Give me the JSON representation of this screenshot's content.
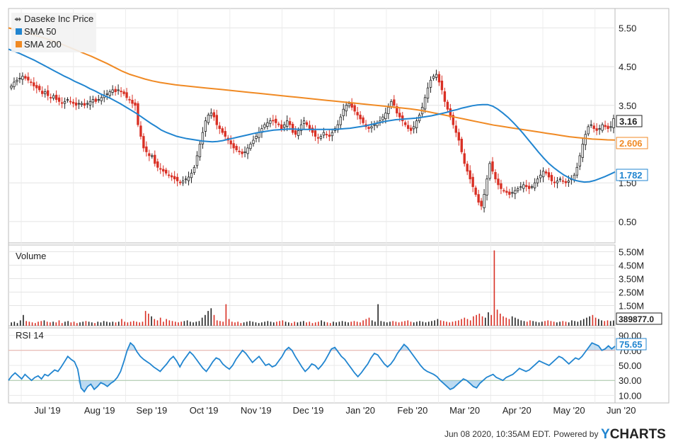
{
  "chart_data": [
    {
      "type": "candlestick",
      "panel": "price",
      "title": "Daseke Inc Price",
      "x_tick_labels": [
        "Jul '19",
        "Aug '19",
        "Sep '19",
        "Oct '19",
        "Nov '19",
        "Dec '19",
        "Jan '20",
        "Feb '20",
        "Mar '20",
        "Apr '20",
        "May '20",
        "Jun '20"
      ],
      "y_tick_labels": [
        "5.50",
        "4.50",
        "3.50",
        "2.50",
        "1.50",
        "0.50"
      ],
      "ylim": [
        -0.05,
        6.0
      ],
      "legend": [
        "Daseke Inc Price",
        "SMA 50",
        "SMA 200"
      ],
      "last_values": {
        "price": "3.16",
        "sma200": "2.606",
        "sma50": "1.782"
      },
      "colors": {
        "up": "#222222",
        "down": "#d93025",
        "sma50": "#2185d0",
        "sma200": "#f08a24"
      },
      "close": [
        4.0,
        4.1,
        4.15,
        4.2,
        4.25,
        4.2,
        4.15,
        4.1,
        4.0,
        3.95,
        3.9,
        3.8,
        3.85,
        3.75,
        3.7,
        3.75,
        3.65,
        3.6,
        3.55,
        3.6,
        3.65,
        3.6,
        3.55,
        3.5,
        3.55,
        3.55,
        3.5,
        3.55,
        3.6,
        3.65,
        3.6,
        3.65,
        3.7,
        3.75,
        3.8,
        3.85,
        3.9,
        3.85,
        3.9,
        3.85,
        3.8,
        3.7,
        3.65,
        3.55,
        3.5,
        3.0,
        2.7,
        2.4,
        2.3,
        2.2,
        2.2,
        2.0,
        1.9,
        1.85,
        1.8,
        1.75,
        1.7,
        1.65,
        1.6,
        1.55,
        1.5,
        1.55,
        1.6,
        1.65,
        1.75,
        1.9,
        2.2,
        2.5,
        2.8,
        3.1,
        3.25,
        3.3,
        3.2,
        3.0,
        2.9,
        2.8,
        2.7,
        2.6,
        2.5,
        2.4,
        2.35,
        2.3,
        2.25,
        2.3,
        2.4,
        2.5,
        2.6,
        2.7,
        2.8,
        2.9,
        3.0,
        3.05,
        3.1,
        3.1,
        3.05,
        3.0,
        2.9,
        3.0,
        3.1,
        3.0,
        2.8,
        2.75,
        2.85,
        3.0,
        3.1,
        3.0,
        2.9,
        2.8,
        2.7,
        2.65,
        2.7,
        2.8,
        2.75,
        2.7,
        2.8,
        2.9,
        3.0,
        3.2,
        3.4,
        3.5,
        3.55,
        3.45,
        3.35,
        3.25,
        3.15,
        3.05,
        2.95,
        2.9,
        2.95,
        3.0,
        3.05,
        3.1,
        3.2,
        3.3,
        3.45,
        3.6,
        3.5,
        3.3,
        3.2,
        3.1,
        3.0,
        2.9,
        2.85,
        2.95,
        3.1,
        3.25,
        3.45,
        3.7,
        3.95,
        4.15,
        4.25,
        4.3,
        4.1,
        3.9,
        3.6,
        3.4,
        3.2,
        3.0,
        2.8,
        2.6,
        2.3,
        2.0,
        1.8,
        1.6,
        1.4,
        1.2,
        1.0,
        0.9,
        1.2,
        1.6,
        2.0,
        1.8,
        1.6,
        1.45,
        1.35,
        1.3,
        1.25,
        1.2,
        1.25,
        1.3,
        1.35,
        1.4,
        1.45,
        1.4,
        1.35,
        1.4,
        1.5,
        1.6,
        1.7,
        1.8,
        1.75,
        1.65,
        1.55,
        1.5,
        1.55,
        1.6,
        1.55,
        1.5,
        1.55,
        1.6,
        1.7,
        1.9,
        2.2,
        2.5,
        2.75,
        2.95,
        3.0,
        2.9,
        2.85,
        2.9,
        3.0,
        2.95,
        2.9,
        2.95,
        3.16
      ],
      "sma50": [
        4.95,
        4.9,
        4.85,
        4.79,
        4.73,
        4.67,
        4.6,
        4.53,
        4.46,
        4.39,
        4.32,
        4.25,
        4.19,
        4.12,
        4.06,
        4.0,
        3.93,
        3.87,
        3.8,
        3.74,
        3.68,
        3.61,
        3.54,
        3.46,
        3.38,
        3.3,
        3.21,
        3.12,
        3.03,
        2.95,
        2.86,
        2.8,
        2.75,
        2.7,
        2.67,
        2.64,
        2.62,
        2.6,
        2.58,
        2.57,
        2.56,
        2.57,
        2.59,
        2.62,
        2.65,
        2.68,
        2.71,
        2.74,
        2.77,
        2.8,
        2.82,
        2.84,
        2.86,
        2.87,
        2.88,
        2.89,
        2.89,
        2.88,
        2.88,
        2.88,
        2.88,
        2.88,
        2.88,
        2.88,
        2.88,
        2.89,
        2.9,
        2.91,
        2.93,
        2.95,
        2.97,
        3.0,
        3.03,
        3.06,
        3.09,
        3.11,
        3.13,
        3.14,
        3.15,
        3.16,
        3.17,
        3.19,
        3.21,
        3.23,
        3.26,
        3.29,
        3.32,
        3.36,
        3.39,
        3.43,
        3.46,
        3.49,
        3.51,
        3.52,
        3.52,
        3.48,
        3.4,
        3.3,
        3.19,
        3.06,
        2.92,
        2.77,
        2.61,
        2.45,
        2.29,
        2.14,
        2.0,
        1.89,
        1.79,
        1.7,
        1.63,
        1.57,
        1.54,
        1.52,
        1.53,
        1.56,
        1.61,
        1.66,
        1.72,
        1.782
      ],
      "sma200": [
        5.5,
        5.45,
        5.4,
        5.34,
        5.28,
        5.22,
        5.15,
        5.08,
        5.0,
        4.92,
        4.84,
        4.76,
        4.67,
        4.58,
        4.48,
        4.38,
        4.3,
        4.24,
        4.18,
        4.13,
        4.09,
        4.06,
        4.03,
        4.01,
        3.99,
        3.97,
        3.95,
        3.93,
        3.91,
        3.89,
        3.87,
        3.85,
        3.83,
        3.81,
        3.79,
        3.77,
        3.75,
        3.73,
        3.71,
        3.69,
        3.67,
        3.65,
        3.63,
        3.61,
        3.59,
        3.57,
        3.55,
        3.53,
        3.51,
        3.49,
        3.47,
        3.45,
        3.43,
        3.41,
        3.38,
        3.35,
        3.31,
        3.27,
        3.23,
        3.19,
        3.15,
        3.11,
        3.07,
        3.03,
        2.99,
        2.96,
        2.93,
        2.9,
        2.87,
        2.84,
        2.81,
        2.78,
        2.75,
        2.72,
        2.69,
        2.67,
        2.65,
        2.63,
        2.62,
        2.61,
        2.606
      ]
    },
    {
      "type": "bar",
      "panel": "volume",
      "title": "Volume",
      "y_tick_labels": [
        "5.50M",
        "4.50M",
        "3.50M",
        "2.50M",
        "1.50M"
      ],
      "ylim": [
        0,
        6000000
      ],
      "last_value": "389877.0",
      "values": [
        250000,
        300000,
        200000,
        400000,
        800000,
        350000,
        300000,
        250000,
        200000,
        300000,
        350000,
        400000,
        300000,
        250000,
        300000,
        250000,
        400000,
        200000,
        300000,
        350000,
        250000,
        300000,
        200000,
        250000,
        300000,
        350000,
        300000,
        250000,
        200000,
        300000,
        250000,
        350000,
        300000,
        250000,
        300000,
        250000,
        300000,
        500000,
        300000,
        250000,
        300000,
        350000,
        300000,
        250000,
        300000,
        1100000,
        900000,
        700000,
        500000,
        400000,
        600000,
        300000,
        500000,
        400000,
        350000,
        300000,
        250000,
        300000,
        350000,
        400000,
        300000,
        250000,
        300000,
        350000,
        600000,
        800000,
        1100000,
        1300000,
        800000,
        400000,
        350000,
        300000,
        1600000,
        500000,
        300000,
        250000,
        300000,
        200000,
        250000,
        300000,
        350000,
        300000,
        250000,
        200000,
        250000,
        300000,
        350000,
        300000,
        250000,
        300000,
        350000,
        400000,
        300000,
        250000,
        200000,
        300000,
        250000,
        300000,
        350000,
        250000,
        300000,
        200000,
        250000,
        300000,
        400000,
        300000,
        250000,
        200000,
        300000,
        250000,
        300000,
        350000,
        300000,
        250000,
        300000,
        350000,
        300000,
        250000,
        400000,
        500000,
        600000,
        400000,
        300000,
        1600000,
        350000,
        300000,
        250000,
        300000,
        350000,
        300000,
        250000,
        300000,
        350000,
        400000,
        300000,
        250000,
        300000,
        350000,
        300000,
        250000,
        300000,
        350000,
        400000,
        500000,
        400000,
        350000,
        300000,
        250000,
        300000,
        350000,
        400000,
        500000,
        600000,
        500000,
        400000,
        700000,
        800000,
        900000,
        700000,
        600000,
        1000000,
        800000,
        5600000,
        1200000,
        900000,
        700000,
        600000,
        500000,
        700000,
        600000,
        500000,
        400000,
        350000,
        300000,
        400000,
        350000,
        300000,
        250000,
        300000,
        350000,
        400000,
        350000,
        300000,
        250000,
        300000,
        350000,
        300000,
        250000,
        400000,
        350000,
        300000,
        400000,
        500000,
        600000,
        700000,
        800000,
        600000,
        500000,
        400000,
        350000,
        400000,
        350000,
        389877
      ]
    },
    {
      "type": "line",
      "panel": "rsi",
      "title": "RSI 14",
      "y_tick_labels": [
        "90.00",
        "70.00",
        "50.00",
        "30.00",
        "10.00"
      ],
      "ylim": [
        0,
        100
      ],
      "reference_lines": [
        70,
        30
      ],
      "last_value": "75.65",
      "values": [
        30,
        36,
        40,
        36,
        32,
        38,
        34,
        30,
        34,
        36,
        32,
        38,
        36,
        40,
        44,
        42,
        48,
        55,
        62,
        58,
        55,
        45,
        20,
        15,
        22,
        25,
        18,
        22,
        27,
        25,
        22,
        26,
        29,
        34,
        42,
        55,
        70,
        80,
        76,
        68,
        62,
        58,
        55,
        52,
        48,
        45,
        42,
        47,
        52,
        58,
        62,
        56,
        48,
        56,
        62,
        68,
        64,
        58,
        52,
        46,
        42,
        48,
        55,
        60,
        58,
        52,
        48,
        45,
        50,
        58,
        64,
        70,
        66,
        60,
        54,
        58,
        62,
        56,
        50,
        52,
        48,
        50,
        56,
        62,
        70,
        74,
        70,
        62,
        55,
        48,
        42,
        46,
        52,
        50,
        45,
        50,
        56,
        64,
        72,
        74,
        68,
        62,
        58,
        52,
        46,
        40,
        35,
        40,
        46,
        52,
        60,
        66,
        64,
        58,
        52,
        48,
        52,
        58,
        66,
        72,
        78,
        74,
        68,
        62,
        56,
        50,
        45,
        42,
        40,
        38,
        35,
        30,
        26,
        22,
        18,
        20,
        24,
        28,
        32,
        30,
        26,
        22,
        20,
        26,
        30,
        34,
        36,
        38,
        34,
        32,
        30,
        34,
        36,
        38,
        42,
        46,
        44,
        42,
        44,
        48,
        52,
        56,
        54,
        52,
        50,
        54,
        58,
        62,
        60,
        56,
        52,
        56,
        60,
        58,
        62,
        68,
        74,
        80,
        78,
        76,
        70,
        72,
        76,
        72,
        75.65
      ],
      "colors": {
        "line": "#2185d0",
        "overbought": "#f08a24",
        "oversold": "#2185d0"
      }
    }
  ],
  "footer": {
    "timestamp": "Jun 08 2020, 10:35AM EDT.",
    "powered_by": "Powered by",
    "brand_y": "Y",
    "brand_rest": "CHARTS"
  }
}
